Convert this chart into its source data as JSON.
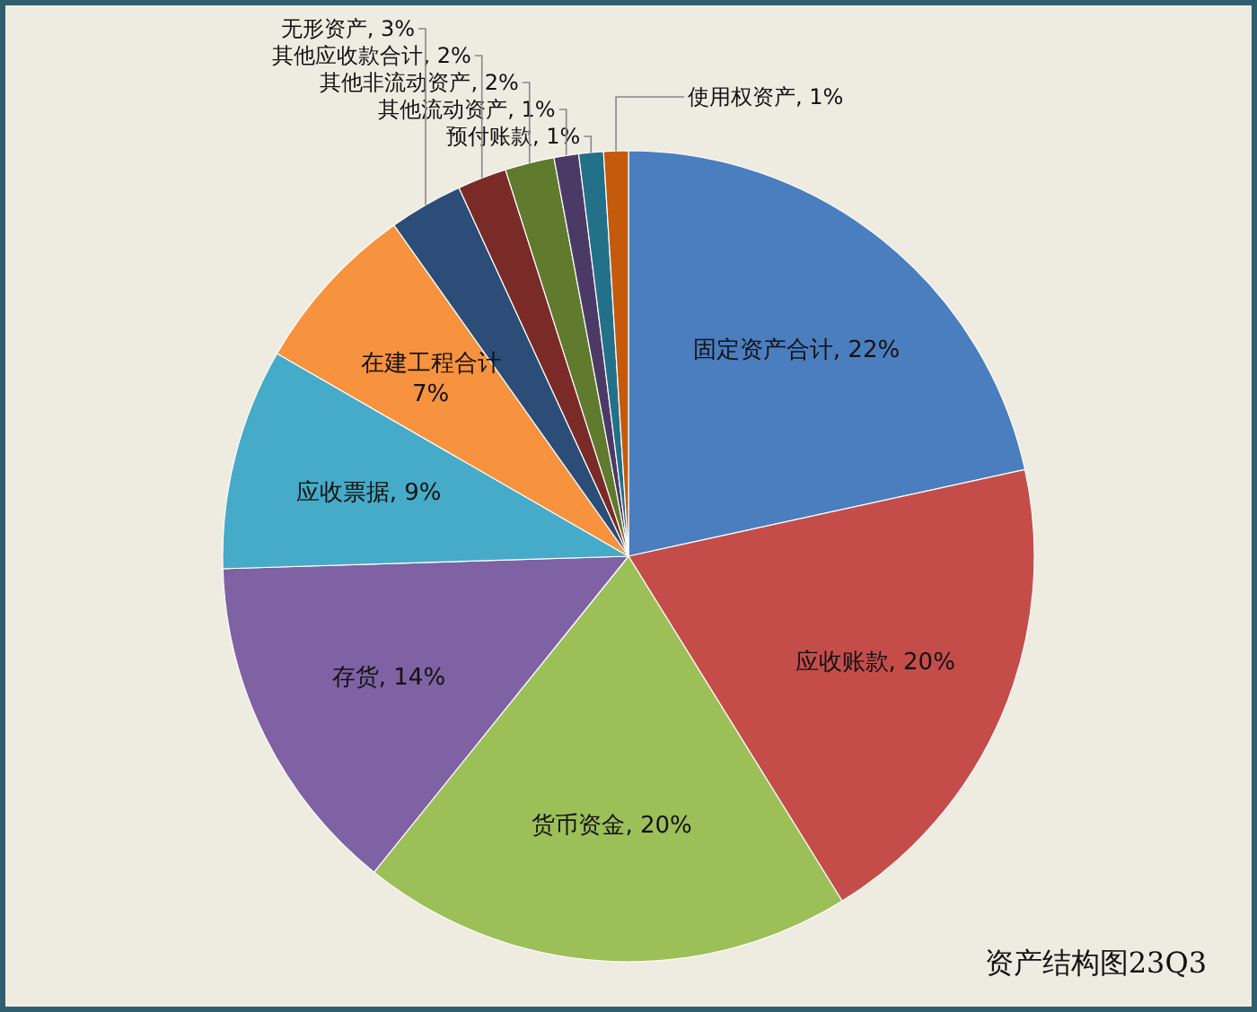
{
  "chart_data": {
    "type": "pie",
    "title": "资产结构图23Q3",
    "categories": [
      "固定资产合计",
      "应收账款",
      "货币资金",
      "存货",
      "应收票据",
      "在建工程合计",
      "无形资产",
      "其他应收款合计",
      "其他非流动资产",
      "其他流动资产",
      "预付账款",
      "使用权资产"
    ],
    "values": [
      22,
      20,
      20,
      14,
      9,
      7,
      3,
      2,
      2,
      1,
      1,
      1
    ],
    "value_labels": [
      "22%",
      "20%",
      "20%",
      "14%",
      "9%",
      "7%",
      "3%",
      "2%",
      "2%",
      "1%",
      "1%",
      "1%"
    ],
    "colors": [
      "#4a7ebf",
      "#c44d4a",
      "#9cbf58",
      "#7f62a3",
      "#46abc8",
      "#f7923f",
      "#2b4d78",
      "#7a2b28",
      "#607a2e",
      "#4c3a66",
      "#237089",
      "#c55a0c"
    ]
  }
}
